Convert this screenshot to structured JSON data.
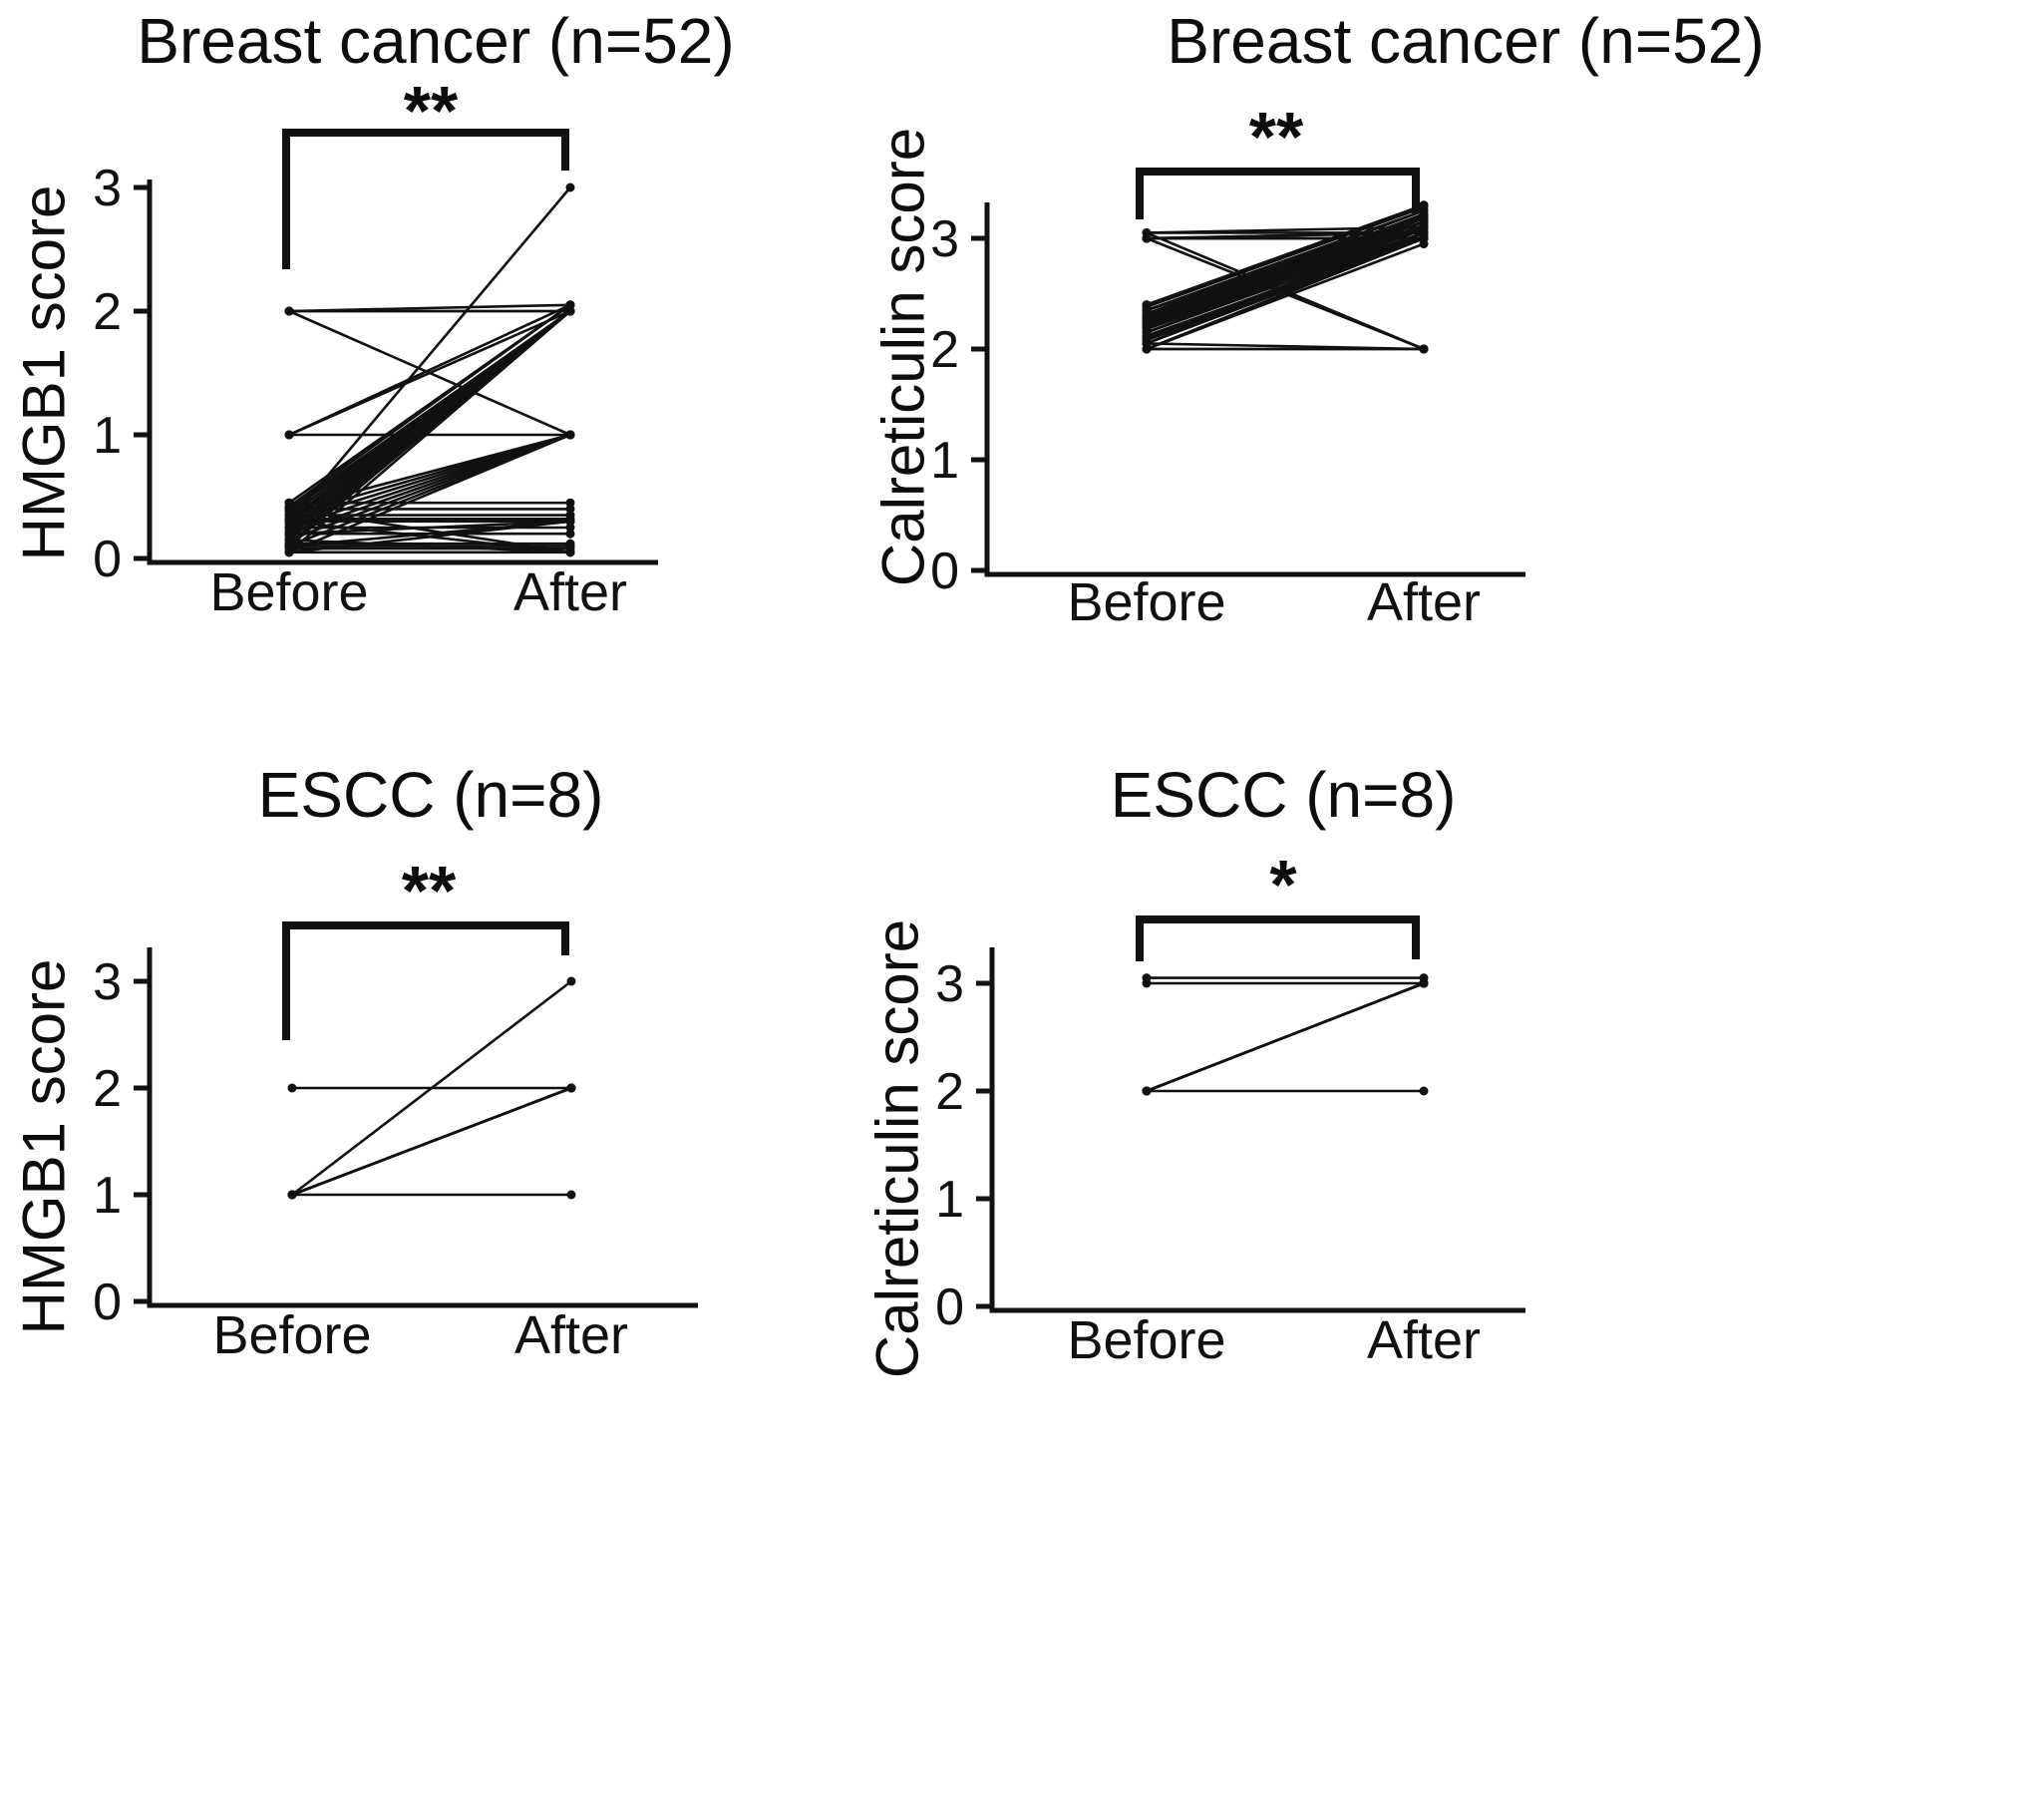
{
  "figure": {
    "background": "#ffffff",
    "ink_color": "#111111"
  },
  "chart_data": [
    {
      "type": "line",
      "subtype": "paired_before_after",
      "title": "Breast cancer (n=52)",
      "ylabel": "HMGB1 score",
      "xlabel": "",
      "categories": [
        "Before",
        "After"
      ],
      "yticks": [
        0,
        1,
        2,
        3
      ],
      "ylim": [
        0,
        3.1
      ],
      "grid": false,
      "legend": "none",
      "significance": "**",
      "n": 52,
      "pairs": [
        [
          2,
          2
        ],
        [
          2,
          2
        ],
        [
          2,
          2.05
        ],
        [
          2,
          1
        ],
        [
          1,
          2
        ],
        [
          1,
          1
        ],
        [
          1,
          2.05
        ],
        [
          0.3,
          3
        ],
        [
          0.05,
          2
        ],
        [
          0.1,
          2
        ],
        [
          0.12,
          2
        ],
        [
          0.15,
          2
        ],
        [
          0.18,
          2
        ],
        [
          0.2,
          2
        ],
        [
          0.22,
          2
        ],
        [
          0.25,
          2
        ],
        [
          0.28,
          2
        ],
        [
          0.3,
          2
        ],
        [
          0.32,
          2
        ],
        [
          0.35,
          2
        ],
        [
          0.38,
          2
        ],
        [
          0.4,
          2
        ],
        [
          0.42,
          2.05
        ],
        [
          0.45,
          2.05
        ],
        [
          0.05,
          1
        ],
        [
          0.1,
          1
        ],
        [
          0.15,
          1
        ],
        [
          0.2,
          1
        ],
        [
          0.25,
          1
        ],
        [
          0.3,
          1
        ],
        [
          0.35,
          1
        ],
        [
          0.4,
          1
        ],
        [
          0.05,
          0.05
        ],
        [
          0.08,
          0.08
        ],
        [
          0.1,
          0.1
        ],
        [
          0.12,
          0.12
        ],
        [
          0.2,
          0.2
        ],
        [
          0.25,
          0.25
        ],
        [
          0.3,
          0.3
        ],
        [
          0.32,
          0.32
        ],
        [
          0.35,
          0.35
        ],
        [
          0.4,
          0.4
        ],
        [
          0.45,
          0.45
        ],
        [
          0.1,
          0.3
        ],
        [
          0.2,
          0.3
        ],
        [
          0.3,
          0.05
        ],
        [
          0.4,
          0.05
        ],
        [
          0.05,
          0.3
        ],
        [
          0.15,
          0.05
        ],
        [
          0.25,
          2
        ],
        [
          0.35,
          2
        ],
        [
          0.2,
          2
        ]
      ]
    },
    {
      "type": "line",
      "subtype": "paired_before_after",
      "title": "Breast cancer (n=52)",
      "ylabel": "Calreticulin score",
      "xlabel": "",
      "categories": [
        "Before",
        "After"
      ],
      "yticks": [
        0,
        1,
        2,
        3
      ],
      "ylim": [
        0,
        3.35
      ],
      "grid": false,
      "legend": "none",
      "significance": "**",
      "n": 52,
      "pairs": [
        [
          3,
          3
        ],
        [
          3,
          3
        ],
        [
          3,
          3
        ],
        [
          3,
          3
        ],
        [
          3,
          3.05
        ],
        [
          3,
          3.05
        ],
        [
          3.05,
          3.05
        ],
        [
          3.05,
          3.1
        ],
        [
          2.3,
          3.2
        ],
        [
          2.3,
          3.2
        ],
        [
          2.3,
          3.25
        ],
        [
          2.28,
          3.18
        ],
        [
          2.25,
          3.15
        ],
        [
          2.25,
          3.15
        ],
        [
          2.25,
          3.1
        ],
        [
          2.22,
          3.12
        ],
        [
          2.2,
          3.1
        ],
        [
          2.2,
          3.1
        ],
        [
          2.2,
          3.05
        ],
        [
          2.18,
          3.08
        ],
        [
          2.35,
          3.25
        ],
        [
          2.35,
          3.2
        ],
        [
          2.38,
          3.28
        ],
        [
          2.4,
          3.3
        ],
        [
          2.4,
          3.3
        ],
        [
          2.3,
          3.15
        ],
        [
          2.32,
          3.2
        ],
        [
          2.28,
          3.22
        ],
        [
          2.26,
          3.18
        ],
        [
          2.24,
          3.12
        ],
        [
          2.15,
          3.05
        ],
        [
          2.12,
          3.02
        ],
        [
          2.1,
          3
        ],
        [
          2.1,
          3
        ],
        [
          2.08,
          3
        ],
        [
          2.05,
          3
        ],
        [
          2.05,
          3.05
        ],
        [
          2,
          3
        ],
        [
          2,
          3
        ],
        [
          2,
          2.95
        ],
        [
          3,
          2
        ],
        [
          3.05,
          2
        ],
        [
          2,
          2
        ],
        [
          2,
          2
        ],
        [
          2.05,
          2
        ],
        [
          2.2,
          3.15
        ],
        [
          2.25,
          3.2
        ],
        [
          2.3,
          3.1
        ],
        [
          2.35,
          3.15
        ],
        [
          2.15,
          3.1
        ],
        [
          2.1,
          3.05
        ],
        [
          2.2,
          3.2
        ]
      ]
    },
    {
      "type": "line",
      "subtype": "paired_before_after",
      "title": "ESCC (n=8)",
      "ylabel": "HMGB1 score",
      "xlabel": "",
      "categories": [
        "Before",
        "After"
      ],
      "yticks": [
        0,
        1,
        2,
        3
      ],
      "ylim": [
        0,
        3.3
      ],
      "grid": false,
      "legend": "none",
      "significance": "**",
      "n": 8,
      "pairs": [
        [
          1,
          2
        ],
        [
          1,
          2
        ],
        [
          1,
          2
        ],
        [
          1,
          2
        ],
        [
          1,
          2
        ],
        [
          1,
          3
        ],
        [
          1,
          1
        ],
        [
          2,
          2
        ]
      ]
    },
    {
      "type": "line",
      "subtype": "paired_before_after",
      "title": "ESCC (n=8)",
      "ylabel": "Calreticulin score",
      "xlabel": "",
      "categories": [
        "Before",
        "After"
      ],
      "yticks": [
        0,
        1,
        2,
        3
      ],
      "ylim": [
        0,
        3.3
      ],
      "grid": false,
      "legend": "none",
      "significance": "*",
      "n": 8,
      "pairs": [
        [
          3,
          3
        ],
        [
          3.05,
          3.05
        ],
        [
          2,
          3
        ],
        [
          2,
          3
        ],
        [
          2,
          3
        ],
        [
          2,
          3
        ],
        [
          2,
          3
        ],
        [
          2,
          2
        ]
      ]
    }
  ]
}
